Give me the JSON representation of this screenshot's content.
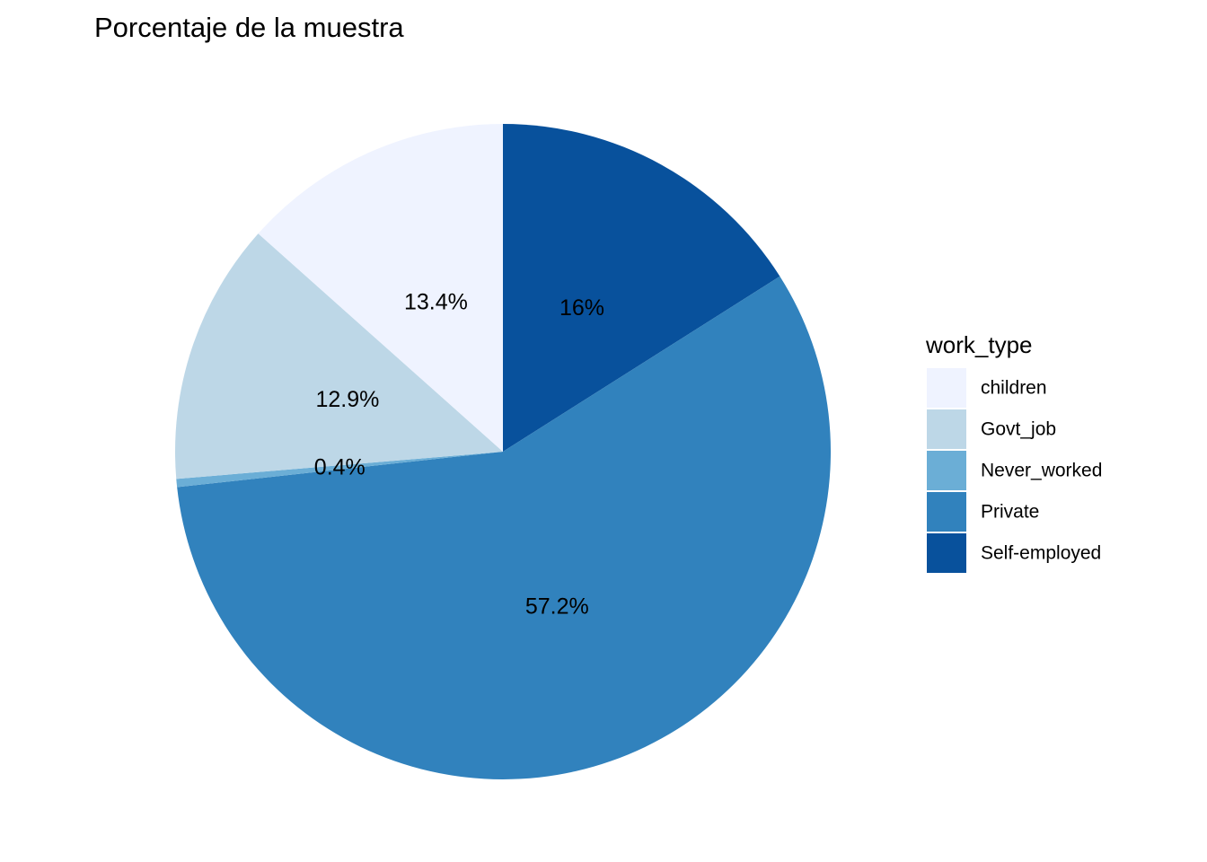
{
  "chart_data": {
    "type": "pie",
    "title": "Porcentaje de la muestra",
    "legend": {
      "title": "work_type",
      "position": "right"
    },
    "slices": [
      {
        "name": "Self-employed",
        "value": 16.0,
        "label": "16%",
        "color": "#08519c"
      },
      {
        "name": "Private",
        "value": 57.2,
        "label": "57.2%",
        "color": "#3182bd"
      },
      {
        "name": "Never_worked",
        "value": 0.4,
        "label": "0.4%",
        "color": "#6baed6"
      },
      {
        "name": "Govt_job",
        "value": 12.9,
        "label": "12.9%",
        "color": "#bdd7e7"
      },
      {
        "name": "children",
        "value": 13.4,
        "label": "13.4%",
        "color": "#eff3ff"
      }
    ],
    "legend_order": [
      "children",
      "Govt_job",
      "Never_worked",
      "Private",
      "Self-employed"
    ],
    "direction": "clockwise",
    "start": "12 o'clock"
  }
}
